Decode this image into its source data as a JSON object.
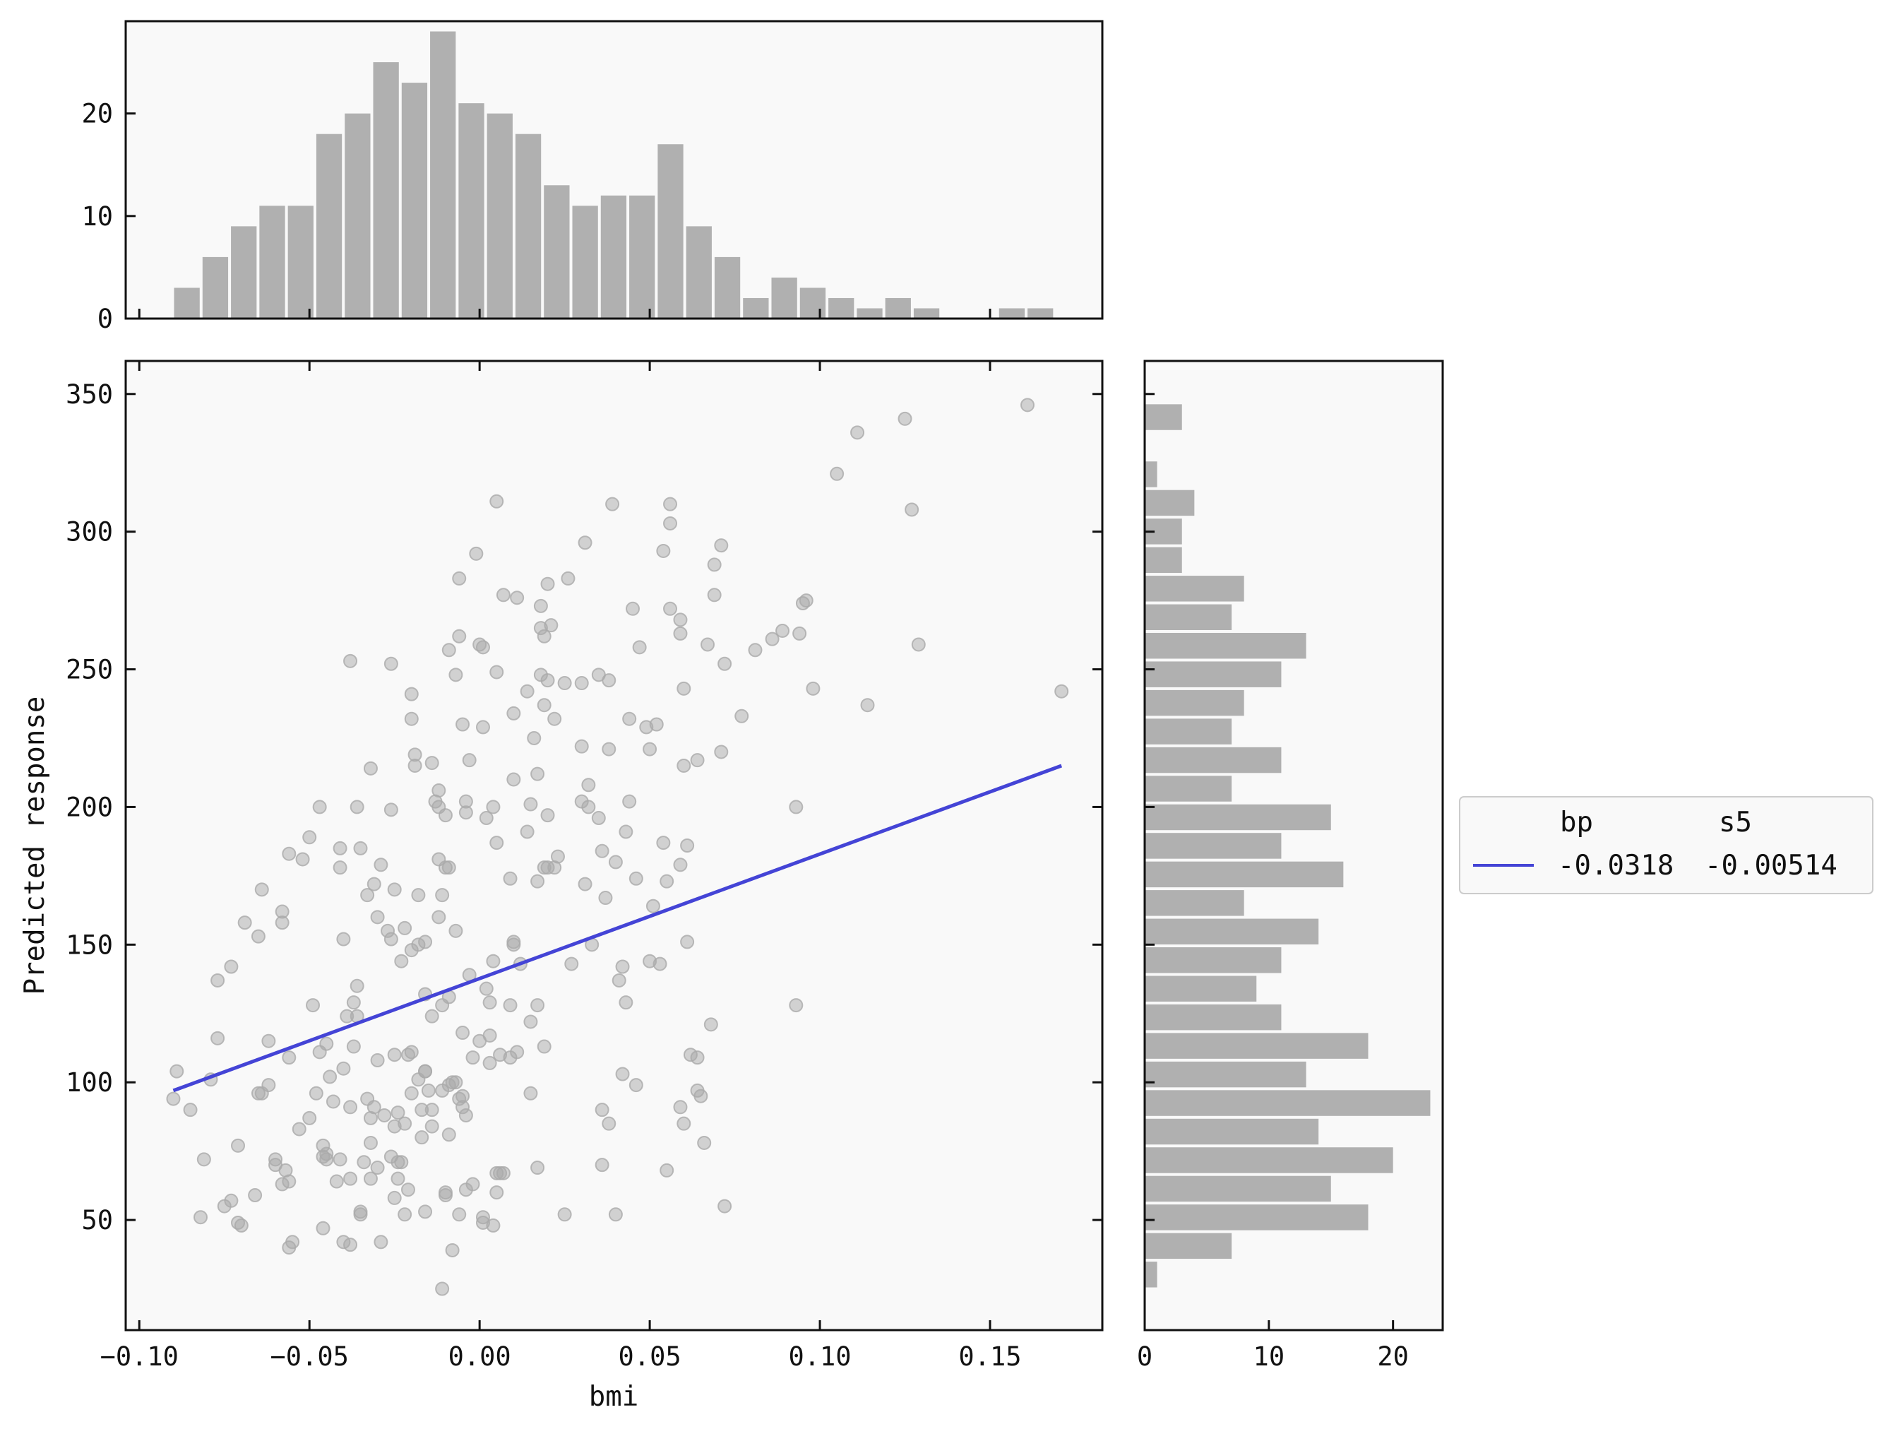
{
  "chart_data": [
    {
      "type": "scatter",
      "xlabel": "bmi",
      "ylabel": "Predicted response",
      "xlim": [
        -0.104,
        0.183
      ],
      "ylim": [
        10,
        362
      ],
      "xticks": [
        -0.1,
        -0.05,
        0.0,
        0.05,
        0.1,
        0.15
      ],
      "xtick_labels": [
        "−0.10",
        "−0.05",
        "0.00",
        "0.05",
        "0.10",
        "0.15"
      ],
      "yticks": [
        50,
        100,
        150,
        200,
        250,
        300,
        350
      ],
      "ytick_labels": [
        "50",
        "100",
        "150",
        "200",
        "250",
        "300",
        "350"
      ],
      "grid": false,
      "point_color": "#aaaaaa",
      "line_color": "#4444d6",
      "points": [
        [
          -0.09,
          94
        ],
        [
          -0.089,
          104
        ],
        [
          -0.085,
          90
        ],
        [
          -0.082,
          51
        ],
        [
          -0.081,
          72
        ],
        [
          -0.079,
          101
        ],
        [
          -0.077,
          137
        ],
        [
          -0.077,
          116
        ],
        [
          -0.075,
          55
        ],
        [
          -0.073,
          142
        ],
        [
          -0.073,
          57
        ],
        [
          -0.071,
          77
        ],
        [
          -0.071,
          49
        ],
        [
          -0.07,
          48
        ],
        [
          -0.069,
          158
        ],
        [
          -0.066,
          59
        ],
        [
          -0.065,
          153
        ],
        [
          -0.065,
          96
        ],
        [
          -0.064,
          170
        ],
        [
          -0.064,
          96
        ],
        [
          -0.062,
          115
        ],
        [
          -0.062,
          99
        ],
        [
          -0.06,
          72
        ],
        [
          -0.06,
          70
        ],
        [
          -0.058,
          162
        ],
        [
          -0.058,
          158
        ],
        [
          -0.058,
          63
        ],
        [
          -0.057,
          68
        ],
        [
          -0.056,
          183
        ],
        [
          -0.056,
          109
        ],
        [
          -0.056,
          64
        ],
        [
          -0.056,
          40
        ],
        [
          -0.055,
          42
        ],
        [
          -0.053,
          83
        ],
        [
          -0.052,
          181
        ],
        [
          -0.05,
          189
        ],
        [
          -0.05,
          87
        ],
        [
          -0.049,
          128
        ],
        [
          -0.048,
          96
        ],
        [
          -0.047,
          200
        ],
        [
          -0.047,
          111
        ],
        [
          -0.046,
          73
        ],
        [
          -0.046,
          77
        ],
        [
          -0.046,
          47
        ],
        [
          -0.045,
          114
        ],
        [
          -0.045,
          74
        ],
        [
          -0.045,
          72
        ],
        [
          -0.044,
          102
        ],
        [
          -0.043,
          93
        ],
        [
          -0.042,
          64
        ],
        [
          -0.041,
          185
        ],
        [
          -0.041,
          178
        ],
        [
          -0.041,
          72
        ],
        [
          -0.04,
          105
        ],
        [
          -0.04,
          152
        ],
        [
          -0.04,
          42
        ],
        [
          -0.039,
          124
        ],
        [
          -0.038,
          65
        ],
        [
          -0.038,
          91
        ],
        [
          -0.038,
          253
        ],
        [
          -0.038,
          41
        ],
        [
          -0.037,
          113
        ],
        [
          -0.037,
          129
        ],
        [
          -0.036,
          135
        ],
        [
          -0.036,
          200
        ],
        [
          -0.036,
          124
        ],
        [
          -0.035,
          185
        ],
        [
          -0.035,
          52
        ],
        [
          -0.035,
          53
        ],
        [
          -0.034,
          71
        ],
        [
          -0.033,
          168
        ],
        [
          -0.033,
          94
        ],
        [
          -0.032,
          214
        ],
        [
          -0.032,
          78
        ],
        [
          -0.032,
          87
        ],
        [
          -0.032,
          65
        ],
        [
          -0.031,
          172
        ],
        [
          -0.031,
          91
        ],
        [
          -0.03,
          160
        ],
        [
          -0.03,
          108
        ],
        [
          -0.03,
          69
        ],
        [
          -0.029,
          42
        ],
        [
          -0.029,
          179
        ],
        [
          -0.028,
          88
        ],
        [
          -0.027,
          155
        ],
        [
          -0.026,
          152
        ],
        [
          -0.026,
          252
        ],
        [
          -0.026,
          199
        ],
        [
          -0.026,
          73
        ],
        [
          -0.025,
          170
        ],
        [
          -0.025,
          110
        ],
        [
          -0.025,
          84
        ],
        [
          -0.025,
          58
        ],
        [
          -0.024,
          89
        ],
        [
          -0.024,
          71
        ],
        [
          -0.023,
          71
        ],
        [
          -0.024,
          65
        ],
        [
          -0.023,
          144
        ],
        [
          -0.022,
          156
        ],
        [
          -0.022,
          85
        ],
        [
          -0.022,
          52
        ],
        [
          -0.021,
          110
        ],
        [
          -0.021,
          61
        ],
        [
          -0.02,
          241
        ],
        [
          -0.02,
          232
        ],
        [
          -0.02,
          148
        ],
        [
          -0.02,
          111
        ],
        [
          -0.02,
          96
        ],
        [
          -0.019,
          219
        ],
        [
          -0.019,
          215
        ],
        [
          -0.018,
          168
        ],
        [
          -0.018,
          150
        ],
        [
          -0.018,
          101
        ],
        [
          -0.017,
          80
        ],
        [
          -0.017,
          90
        ],
        [
          -0.016,
          132
        ],
        [
          -0.016,
          104
        ],
        [
          -0.016,
          104
        ],
        [
          -0.016,
          151
        ],
        [
          -0.016,
          53
        ],
        [
          -0.015,
          97
        ],
        [
          -0.014,
          216
        ],
        [
          -0.014,
          124
        ],
        [
          -0.014,
          84
        ],
        [
          -0.014,
          90
        ],
        [
          -0.013,
          202
        ],
        [
          -0.012,
          206
        ],
        [
          -0.012,
          181
        ],
        [
          -0.012,
          160
        ],
        [
          -0.012,
          200
        ],
        [
          -0.011,
          168
        ],
        [
          -0.011,
          128
        ],
        [
          -0.011,
          97
        ],
        [
          -0.011,
          25
        ],
        [
          -0.01,
          178
        ],
        [
          -0.01,
          59
        ],
        [
          -0.01,
          60
        ],
        [
          -0.01,
          197
        ],
        [
          -0.009,
          257
        ],
        [
          -0.009,
          178
        ],
        [
          -0.009,
          99
        ],
        [
          -0.009,
          81
        ],
        [
          -0.009,
          131
        ],
        [
          -0.008,
          100
        ],
        [
          -0.008,
          39
        ],
        [
          -0.007,
          248
        ],
        [
          -0.007,
          155
        ],
        [
          -0.007,
          100
        ],
        [
          -0.006,
          283
        ],
        [
          -0.006,
          262
        ],
        [
          -0.006,
          52
        ],
        [
          -0.006,
          94
        ],
        [
          -0.005,
          95
        ],
        [
          -0.005,
          230
        ],
        [
          -0.005,
          91
        ],
        [
          -0.005,
          118
        ],
        [
          -0.004,
          202
        ],
        [
          -0.004,
          198
        ],
        [
          -0.004,
          88
        ],
        [
          -0.004,
          61
        ],
        [
          -0.003,
          139
        ],
        [
          -0.003,
          217
        ],
        [
          -0.002,
          109
        ],
        [
          -0.002,
          63
        ],
        [
          -0.001,
          292
        ],
        [
          0.0,
          259
        ],
        [
          0.0,
          115
        ],
        [
          0.001,
          258
        ],
        [
          0.001,
          229
        ],
        [
          0.001,
          51
        ],
        [
          0.001,
          49
        ],
        [
          0.002,
          196
        ],
        [
          0.002,
          134
        ],
        [
          0.003,
          129
        ],
        [
          0.003,
          117
        ],
        [
          0.003,
          107
        ],
        [
          0.004,
          200
        ],
        [
          0.004,
          144
        ],
        [
          0.004,
          48
        ],
        [
          0.005,
          311
        ],
        [
          0.005,
          249
        ],
        [
          0.005,
          187
        ],
        [
          0.005,
          67
        ],
        [
          0.005,
          60
        ],
        [
          0.006,
          110
        ],
        [
          0.006,
          67
        ],
        [
          0.007,
          277
        ],
        [
          0.007,
          67
        ],
        [
          0.009,
          109
        ],
        [
          0.009,
          174
        ],
        [
          0.009,
          128
        ],
        [
          0.01,
          234
        ],
        [
          0.01,
          210
        ],
        [
          0.01,
          151
        ],
        [
          0.01,
          150
        ],
        [
          0.011,
          276
        ],
        [
          0.011,
          111
        ],
        [
          0.012,
          143
        ],
        [
          0.014,
          242
        ],
        [
          0.014,
          191
        ],
        [
          0.015,
          201
        ],
        [
          0.015,
          122
        ],
        [
          0.015,
          96
        ],
        [
          0.016,
          225
        ],
        [
          0.017,
          212
        ],
        [
          0.017,
          173
        ],
        [
          0.017,
          128
        ],
        [
          0.017,
          69
        ],
        [
          0.018,
          273
        ],
        [
          0.018,
          265
        ],
        [
          0.018,
          248
        ],
        [
          0.019,
          237
        ],
        [
          0.019,
          262
        ],
        [
          0.019,
          178
        ],
        [
          0.019,
          113
        ],
        [
          0.02,
          178
        ],
        [
          0.02,
          281
        ],
        [
          0.02,
          246
        ],
        [
          0.02,
          197
        ],
        [
          0.021,
          266
        ],
        [
          0.022,
          178
        ],
        [
          0.022,
          232
        ],
        [
          0.023,
          182
        ],
        [
          0.025,
          245
        ],
        [
          0.025,
          52
        ],
        [
          0.026,
          283
        ],
        [
          0.027,
          143
        ],
        [
          0.03,
          245
        ],
        [
          0.03,
          222
        ],
        [
          0.03,
          202
        ],
        [
          0.031,
          172
        ],
        [
          0.031,
          296
        ],
        [
          0.032,
          208
        ],
        [
          0.032,
          200
        ],
        [
          0.033,
          150
        ],
        [
          0.035,
          248
        ],
        [
          0.035,
          196
        ],
        [
          0.036,
          184
        ],
        [
          0.036,
          90
        ],
        [
          0.036,
          70
        ],
        [
          0.037,
          167
        ],
        [
          0.038,
          221
        ],
        [
          0.038,
          246
        ],
        [
          0.038,
          85
        ],
        [
          0.039,
          310
        ],
        [
          0.04,
          52
        ],
        [
          0.04,
          180
        ],
        [
          0.041,
          137
        ],
        [
          0.042,
          142
        ],
        [
          0.042,
          103
        ],
        [
          0.043,
          129
        ],
        [
          0.043,
          191
        ],
        [
          0.044,
          202
        ],
        [
          0.044,
          232
        ],
        [
          0.045,
          272
        ],
        [
          0.046,
          174
        ],
        [
          0.046,
          99
        ],
        [
          0.047,
          258
        ],
        [
          0.049,
          229
        ],
        [
          0.05,
          144
        ],
        [
          0.05,
          221
        ],
        [
          0.051,
          164
        ],
        [
          0.052,
          230
        ],
        [
          0.053,
          143
        ],
        [
          0.054,
          293
        ],
        [
          0.054,
          187
        ],
        [
          0.055,
          173
        ],
        [
          0.055,
          68
        ],
        [
          0.056,
          310
        ],
        [
          0.056,
          303
        ],
        [
          0.056,
          272
        ],
        [
          0.059,
          263
        ],
        [
          0.059,
          268
        ],
        [
          0.059,
          179
        ],
        [
          0.059,
          91
        ],
        [
          0.06,
          85
        ],
        [
          0.06,
          215
        ],
        [
          0.06,
          243
        ],
        [
          0.061,
          186
        ],
        [
          0.061,
          151
        ],
        [
          0.062,
          110
        ],
        [
          0.064,
          109
        ],
        [
          0.064,
          217
        ],
        [
          0.064,
          97
        ],
        [
          0.065,
          95
        ],
        [
          0.066,
          78
        ],
        [
          0.067,
          259
        ],
        [
          0.068,
          121
        ],
        [
          0.069,
          277
        ],
        [
          0.069,
          288
        ],
        [
          0.071,
          295
        ],
        [
          0.071,
          220
        ],
        [
          0.072,
          252
        ],
        [
          0.072,
          55
        ],
        [
          0.077,
          233
        ],
        [
          0.081,
          257
        ],
        [
          0.086,
          261
        ],
        [
          0.089,
          264
        ],
        [
          0.093,
          128
        ],
        [
          0.093,
          200
        ],
        [
          0.094,
          263
        ],
        [
          0.095,
          274
        ],
        [
          0.096,
          275
        ],
        [
          0.098,
          243
        ],
        [
          0.105,
          321
        ],
        [
          0.111,
          336
        ],
        [
          0.114,
          237
        ],
        [
          0.125,
          341
        ],
        [
          0.127,
          308
        ],
        [
          0.129,
          259
        ],
        [
          0.161,
          346
        ],
        [
          0.171,
          242
        ]
      ],
      "line": {
        "x": [
          -0.09,
          0.171
        ],
        "y": [
          97,
          215
        ]
      }
    },
    {
      "type": "bar",
      "orientation": "vertical",
      "xlim": [
        -0.104,
        0.183
      ],
      "ylim": [
        0,
        29
      ],
      "yticks": [
        0,
        10,
        20
      ],
      "ytick_labels": [
        "0",
        "10",
        "20"
      ],
      "bin_width": 0.00836,
      "bin_start": -0.0902,
      "bar_color": "#b0b0b0",
      "values": [
        3,
        6,
        9,
        11,
        11,
        18,
        20,
        25,
        23,
        28,
        21,
        20,
        18,
        13,
        11,
        12,
        12,
        17,
        9,
        6,
        2,
        4,
        3,
        2,
        1,
        2,
        1,
        0,
        0,
        1,
        1
      ]
    },
    {
      "type": "bar",
      "orientation": "horizontal",
      "xlim": [
        0,
        24
      ],
      "xticks": [
        0,
        10,
        20
      ],
      "xtick_labels": [
        "0",
        "10",
        "20"
      ],
      "bin_width": 10.38,
      "bin_start": 25,
      "bar_color": "#b0b0b0",
      "values": [
        1,
        7,
        18,
        15,
        20,
        14,
        23,
        13,
        18,
        11,
        9,
        11,
        14,
        8,
        16,
        11,
        15,
        7,
        11,
        7,
        8,
        11,
        13,
        7,
        8,
        3,
        3,
        4,
        1,
        0,
        3
      ]
    }
  ],
  "legend": {
    "headers": [
      "bp",
      "s5"
    ],
    "values": [
      "-0.0318",
      "-0.00514"
    ],
    "line_color": "#4444d6"
  }
}
